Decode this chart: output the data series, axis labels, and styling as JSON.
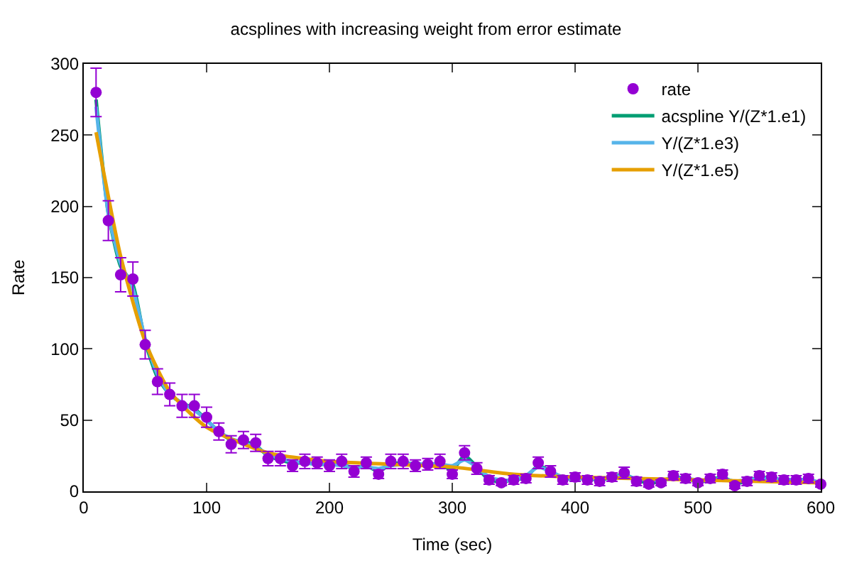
{
  "chart_data": {
    "type": "line",
    "title": "acsplines with increasing weight from error estimate",
    "xlabel": "Time (sec)",
    "ylabel": "Rate",
    "x": [
      10,
      20,
      30,
      40,
      50,
      60,
      70,
      80,
      90,
      100,
      110,
      120,
      130,
      140,
      150,
      160,
      170,
      180,
      190,
      200,
      210,
      220,
      230,
      240,
      250,
      260,
      270,
      280,
      290,
      300,
      310,
      320,
      330,
      340,
      350,
      360,
      370,
      380,
      390,
      400,
      410,
      420,
      430,
      440,
      450,
      460,
      470,
      480,
      490,
      500,
      510,
      520,
      530,
      540,
      550,
      560,
      570,
      580,
      590,
      600
    ],
    "series": [
      {
        "name": "rate",
        "type": "scatter",
        "marker": "circle",
        "color": "#9400d3",
        "values": [
          280,
          190,
          152,
          149,
          103,
          77,
          68,
          60,
          60,
          52,
          42,
          33,
          36,
          34,
          23,
          23,
          18,
          21,
          20,
          18,
          21,
          14,
          20,
          12,
          21,
          21,
          18,
          19,
          21,
          12,
          27,
          16,
          8,
          6,
          8,
          9,
          20,
          14,
          8,
          10,
          8,
          7,
          10,
          13,
          7,
          5,
          6,
          11,
          9,
          6,
          9,
          12,
          4,
          7,
          11,
          10,
          8,
          8,
          9,
          5
        ],
        "errors": [
          17,
          14,
          12,
          12,
          10,
          9,
          8,
          8,
          8,
          7,
          6,
          6,
          6,
          6,
          5,
          5,
          4,
          5,
          4,
          4,
          5,
          4,
          4,
          3,
          5,
          5,
          4,
          4,
          5,
          3,
          5,
          4,
          3,
          2,
          3,
          3,
          4,
          4,
          3,
          3,
          3,
          3,
          3,
          4,
          3,
          2,
          2,
          3,
          3,
          2,
          3,
          3,
          2,
          3,
          3,
          3,
          3,
          3,
          3,
          2
        ]
      },
      {
        "name": "acspline Y/(Z*1.e1)",
        "color": "#009e73",
        "values": [
          275,
          195,
          158,
          145,
          105,
          80,
          68,
          62,
          58,
          50,
          42,
          36,
          35,
          32,
          25,
          22,
          20,
          20,
          19,
          19,
          19,
          16,
          18,
          14,
          19,
          20,
          19,
          19,
          19,
          15,
          25,
          17,
          8,
          7,
          8,
          10,
          18,
          14,
          9,
          9,
          9,
          8,
          10,
          12,
          8,
          6,
          7,
          10,
          9,
          7,
          8,
          10,
          6,
          7,
          10,
          9,
          8,
          8,
          8,
          6
        ]
      },
      {
        "name": "Y/(Z*1.e3)",
        "color": "#56b4e9",
        "values": [
          270,
          195,
          160,
          142,
          107,
          82,
          68,
          62,
          57,
          50,
          42,
          37,
          34,
          31,
          26,
          23,
          21,
          20,
          19,
          19,
          18,
          17,
          17,
          16,
          18,
          19,
          19,
          19,
          19,
          18,
          22,
          17,
          10,
          8,
          8,
          11,
          17,
          14,
          10,
          9,
          9,
          9,
          10,
          11,
          9,
          8,
          8,
          9,
          9,
          8,
          8,
          9,
          7,
          8,
          9,
          9,
          8,
          8,
          8,
          6
        ]
      },
      {
        "name": "Y/(Z*1.e5)",
        "color": "#e69f00",
        "x": [
          10,
          30,
          50,
          70,
          100,
          150,
          200,
          250,
          300,
          350,
          400,
          450,
          500,
          550,
          600
        ],
        "values": [
          252,
          165,
          105,
          70,
          45,
          27,
          21,
          19,
          17,
          12,
          10,
          9,
          8,
          7,
          6
        ]
      }
    ],
    "xlim": [
      0,
      600
    ],
    "xticks": [
      0,
      100,
      200,
      300,
      400,
      500,
      600
    ],
    "ylim": [
      0,
      300
    ],
    "yticks": [
      0,
      50,
      100,
      150,
      200,
      250,
      300
    ],
    "legend": "top right"
  }
}
